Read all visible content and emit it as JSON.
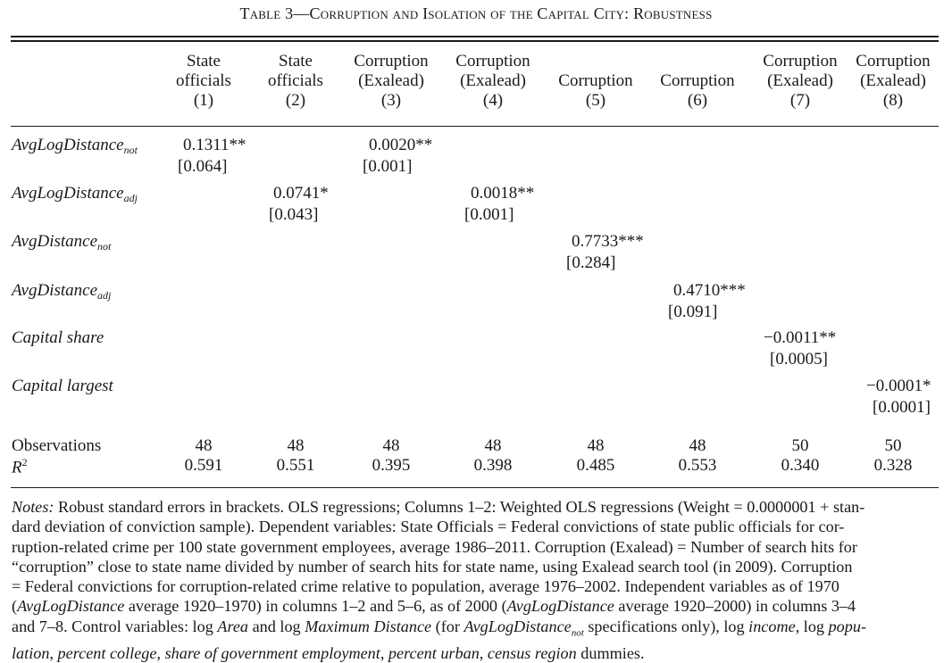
{
  "table": {
    "title": "Table 3—Corruption and Isolation of the Capital City: Robustness",
    "columns": [
      {
        "line1": "State",
        "line2": "officials",
        "num": "(1)"
      },
      {
        "line1": "State",
        "line2": "officials",
        "num": "(2)"
      },
      {
        "line1": "Corruption",
        "line2": "(Exalead)",
        "num": "(3)"
      },
      {
        "line1": "Corruption",
        "line2": "(Exalead)",
        "num": "(4)"
      },
      {
        "line1": "",
        "line2": "Corruption",
        "num": "(5)"
      },
      {
        "line1": "",
        "line2": "Corruption",
        "num": "(6)"
      },
      {
        "line1": "Corruption",
        "line2": "(Exalead)",
        "num": "(7)"
      },
      {
        "line1": "Corruption",
        "line2": "(Exalead)",
        "num": "(8)"
      }
    ],
    "rows": [
      {
        "label": "AvgLogDistance",
        "sub": "not",
        "coef": "0.1311**",
        "se": "[0.064]",
        "col": 1
      },
      {
        "label": "",
        "sub": "",
        "coef": "0.0020**",
        "se": "[0.001]",
        "col": 3
      },
      {
        "label": "AvgLogDistance",
        "sub": "adj",
        "coef": "0.0741*",
        "se": "[0.043]",
        "col": 2
      },
      {
        "label": "",
        "sub": "",
        "coef": "0.0018**",
        "se": "[0.001]",
        "col": 4
      },
      {
        "label": "AvgDistance",
        "sub": "not",
        "coef": "0.7733***",
        "se": "[0.284]",
        "col": 5
      },
      {
        "label": "AvgDistance",
        "sub": "adj",
        "coef": "0.4710***",
        "se": "[0.091]",
        "col": 6
      },
      {
        "label": "Capital share",
        "sub": "",
        "coef": "−0.0011**",
        "se": "[0.0005]",
        "col": 7
      },
      {
        "label": "Capital largest",
        "sub": "",
        "coef": "−0.0001*",
        "se": "[0.0001]",
        "col": 8
      }
    ],
    "observations_label": "Observations",
    "observations": [
      "48",
      "48",
      "48",
      "48",
      "48",
      "48",
      "50",
      "50"
    ],
    "r2_label": "R",
    "r2_sup": "2",
    "r2": [
      "0.591",
      "0.551",
      "0.395",
      "0.398",
      "0.485",
      "0.553",
      "0.340",
      "0.328"
    ]
  },
  "notes": {
    "lead": "Notes:",
    "l1": " Robust standard errors in brackets. OLS regressions; Columns 1–2: Weighted OLS regressions (Weight = 0.0000001 + stan-",
    "l2": "dard deviation of conviction sample). Dependent variables: State Officials = Federal convictions of state public officials for cor-",
    "l3": "ruption-related crime per 100 state government employees, average 1986–2011. Corruption (Exalead) = Number of search hits for",
    "l4": "“corruption” close to state name divided by number of search hits for state name, using Exalead search tool (in 2009). Corruption",
    "l5": "= Federal convictions for corruption-related crime relative to population, average 1976–2002. Independent variables as of 1970",
    "l6a": "(",
    "l6b": "AvgLogDistance",
    "l6c": " average 1920–1970) in columns 1–2 and 5–6, as of 2000 (",
    "l6d": "AvgLogDistance",
    "l6e": " average 1920–2000) in columns 3–4",
    "l7a": "and 7–8. Control variables: log ",
    "l7b": "Area",
    "l7c": " and log ",
    "l7d": "Maximum Distance",
    "l7e": " (for ",
    "l7f": "AvgLogDistance",
    "l7sub": "not",
    "l7g": " specifications only), log ",
    "l7h": "income",
    "l7i": ", log ",
    "l7j": "popu-",
    "l8a": "lation",
    "l8b": ", ",
    "l8c": "percent college",
    "l8d": ", ",
    "l8e": "share of government employment",
    "l8f": ", ",
    "l8g": "percent urban",
    "l8h": ", ",
    "l8i": "census region",
    "l8j": " dummies."
  }
}
